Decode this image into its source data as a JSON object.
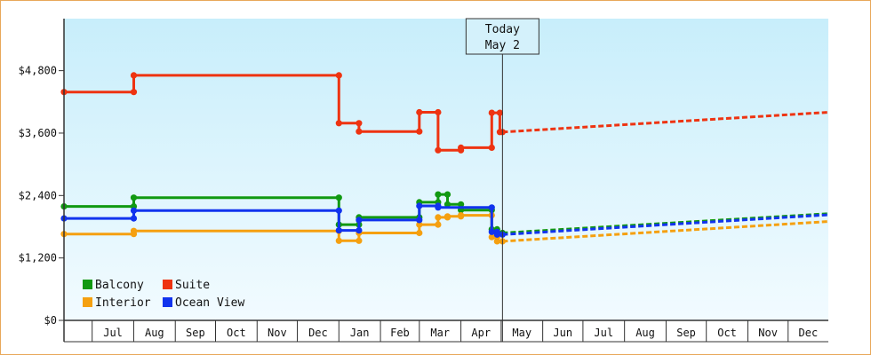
{
  "colors": {
    "balcony": "#119911",
    "suite": "#ee3311",
    "interior": "#f5a010",
    "ocean_view": "#1133ee"
  },
  "chart_data": {
    "type": "line",
    "title": "",
    "xlabel": "",
    "ylabel": "",
    "ylim": [
      0,
      5800
    ],
    "xlim": [
      "2023-06-10",
      "2024-12-31"
    ],
    "y_ticks": [
      {
        "value": 0,
        "label": "$0"
      },
      {
        "value": 1200,
        "label": "$1,200"
      },
      {
        "value": 2400,
        "label": "$2,400"
      },
      {
        "value": 3600,
        "label": "$3,600"
      },
      {
        "value": 4800,
        "label": "$4,800"
      }
    ],
    "x_ticks": [
      {
        "start": "2023-07-01",
        "end": "2023-08-01",
        "label": "Jul"
      },
      {
        "start": "2023-08-01",
        "end": "2023-09-01",
        "label": "Aug"
      },
      {
        "start": "2023-09-01",
        "end": "2023-10-01",
        "label": "Sep"
      },
      {
        "start": "2023-10-01",
        "end": "2023-11-01",
        "label": "Oct"
      },
      {
        "start": "2023-11-01",
        "end": "2023-12-01",
        "label": "Nov"
      },
      {
        "start": "2023-12-01",
        "end": "2024-01-01",
        "label": "Dec"
      },
      {
        "start": "2024-01-01",
        "end": "2024-02-01",
        "label": "Jan"
      },
      {
        "start": "2024-02-01",
        "end": "2024-03-01",
        "label": "Feb"
      },
      {
        "start": "2024-03-01",
        "end": "2024-04-01",
        "label": "Mar"
      },
      {
        "start": "2024-04-01",
        "end": "2024-05-01",
        "label": "Apr"
      },
      {
        "start": "2024-05-01",
        "end": "2024-06-01",
        "label": "May"
      },
      {
        "start": "2024-06-01",
        "end": "2024-07-01",
        "label": "Jun"
      },
      {
        "start": "2024-07-01",
        "end": "2024-08-01",
        "label": "Jul"
      },
      {
        "start": "2024-08-01",
        "end": "2024-09-01",
        "label": "Aug"
      },
      {
        "start": "2024-09-01",
        "end": "2024-10-01",
        "label": "Sep"
      },
      {
        "start": "2024-10-01",
        "end": "2024-11-01",
        "label": "Oct"
      },
      {
        "start": "2024-11-01",
        "end": "2024-12-01",
        "label": "Nov"
      },
      {
        "start": "2024-12-01",
        "end": "2025-01-01",
        "label": "Dec"
      }
    ],
    "today": {
      "date": "2024-05-02",
      "line1": "Today",
      "line2": "May 2"
    },
    "grid": false,
    "legend_position": "bottom-left",
    "series": [
      {
        "key": "balcony",
        "name": "Balcony",
        "history": [
          [
            "2023-06-10",
            2190
          ],
          [
            "2023-08-01",
            2190
          ],
          [
            "2023-08-01",
            2360
          ],
          [
            "2024-01-01",
            2360
          ],
          [
            "2024-01-01",
            1840
          ],
          [
            "2024-01-16",
            1840
          ],
          [
            "2024-01-16",
            1980
          ],
          [
            "2024-03-01",
            1980
          ],
          [
            "2024-03-01",
            2270
          ],
          [
            "2024-03-15",
            2270
          ],
          [
            "2024-03-15",
            2420
          ],
          [
            "2024-03-22",
            2420
          ],
          [
            "2024-03-22",
            2230
          ],
          [
            "2024-04-01",
            2230
          ],
          [
            "2024-04-01",
            2120
          ],
          [
            "2024-04-24",
            2120
          ],
          [
            "2024-04-24",
            1750
          ],
          [
            "2024-04-28",
            1750
          ],
          [
            "2024-04-28",
            1680
          ],
          [
            "2024-05-02",
            1680
          ]
        ],
        "forecast": [
          [
            "2024-05-02",
            1680
          ],
          [
            "2024-12-31",
            2050
          ]
        ]
      },
      {
        "key": "suite",
        "name": "Suite",
        "history": [
          [
            "2023-06-10",
            4390
          ],
          [
            "2023-08-01",
            4390
          ],
          [
            "2023-08-01",
            4710
          ],
          [
            "2024-01-01",
            4710
          ],
          [
            "2024-01-01",
            3790
          ],
          [
            "2024-01-16",
            3790
          ],
          [
            "2024-01-16",
            3630
          ],
          [
            "2024-03-01",
            3630
          ],
          [
            "2024-03-01",
            4000
          ],
          [
            "2024-03-15",
            4000
          ],
          [
            "2024-03-15",
            3270
          ],
          [
            "2024-04-01",
            3270
          ],
          [
            "2024-04-01",
            3320
          ],
          [
            "2024-04-24",
            3320
          ],
          [
            "2024-04-24",
            3990
          ],
          [
            "2024-04-30",
            3990
          ],
          [
            "2024-04-30",
            3620
          ],
          [
            "2024-05-02",
            3620
          ]
        ],
        "forecast": [
          [
            "2024-05-02",
            3620
          ],
          [
            "2024-12-31",
            4000
          ]
        ]
      },
      {
        "key": "interior",
        "name": "Interior",
        "history": [
          [
            "2023-06-10",
            1660
          ],
          [
            "2023-08-01",
            1660
          ],
          [
            "2023-08-01",
            1720
          ],
          [
            "2024-01-01",
            1720
          ],
          [
            "2024-01-01",
            1530
          ],
          [
            "2024-01-16",
            1530
          ],
          [
            "2024-01-16",
            1680
          ],
          [
            "2024-03-01",
            1680
          ],
          [
            "2024-03-01",
            1840
          ],
          [
            "2024-03-15",
            1840
          ],
          [
            "2024-03-15",
            1980
          ],
          [
            "2024-03-22",
            1980
          ],
          [
            "2024-03-22",
            2000
          ],
          [
            "2024-04-01",
            2000
          ],
          [
            "2024-04-01",
            2020
          ],
          [
            "2024-04-24",
            2020
          ],
          [
            "2024-04-24",
            1600
          ],
          [
            "2024-04-28",
            1600
          ],
          [
            "2024-04-28",
            1520
          ],
          [
            "2024-05-02",
            1520
          ]
        ],
        "forecast": [
          [
            "2024-05-02",
            1520
          ],
          [
            "2024-12-31",
            1900
          ]
        ]
      },
      {
        "key": "ocean_view",
        "name": "Ocean View",
        "history": [
          [
            "2023-06-10",
            1960
          ],
          [
            "2023-08-01",
            1960
          ],
          [
            "2023-08-01",
            2110
          ],
          [
            "2024-01-01",
            2110
          ],
          [
            "2024-01-01",
            1730
          ],
          [
            "2024-01-16",
            1730
          ],
          [
            "2024-01-16",
            1930
          ],
          [
            "2024-03-01",
            1930
          ],
          [
            "2024-03-01",
            2200
          ],
          [
            "2024-03-15",
            2200
          ],
          [
            "2024-03-15",
            2170
          ],
          [
            "2024-04-24",
            2170
          ],
          [
            "2024-04-24",
            1700
          ],
          [
            "2024-04-28",
            1700
          ],
          [
            "2024-04-28",
            1650
          ],
          [
            "2024-05-02",
            1650
          ]
        ],
        "forecast": [
          [
            "2024-05-02",
            1650
          ],
          [
            "2024-12-31",
            2030
          ]
        ]
      }
    ]
  }
}
